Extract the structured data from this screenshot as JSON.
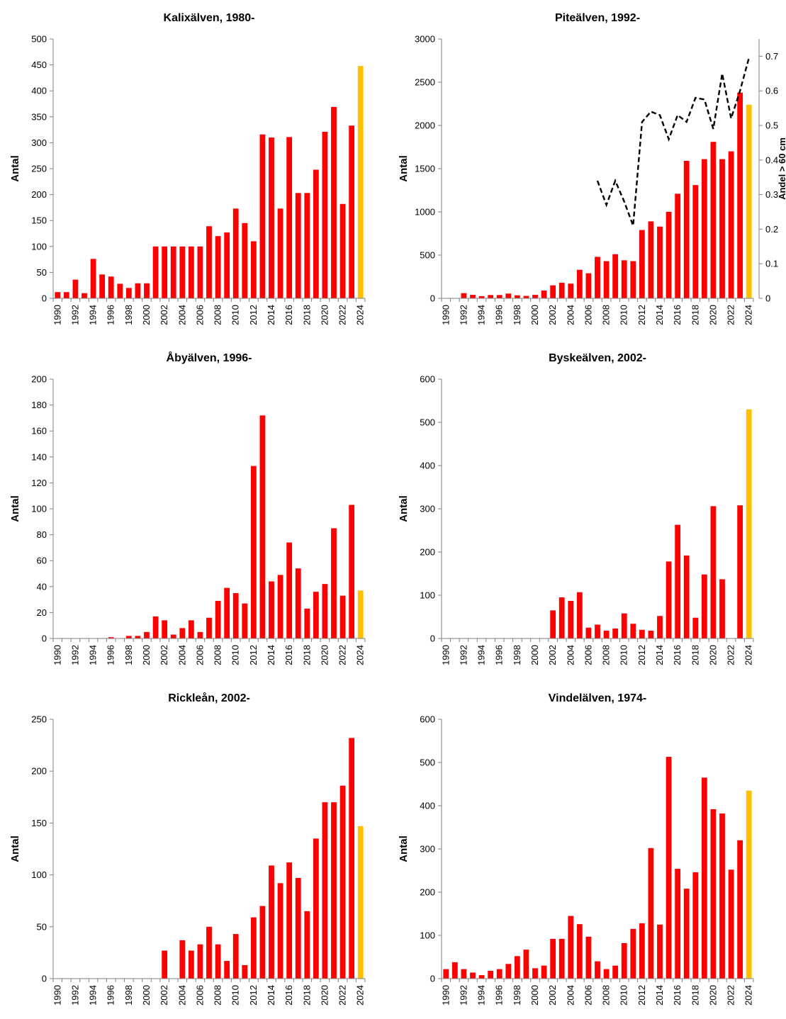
{
  "colors": {
    "bar": "#ff0000",
    "bar_last": "#ffc000",
    "axis": "#808080",
    "line": "#000000"
  },
  "chart_data": [
    {
      "type": "bar",
      "title": "Kalixälven, 1980-",
      "ylabel": "Antal",
      "ylim": [
        0,
        500
      ],
      "yticks": [
        "0",
        "50",
        "100",
        "150",
        "200",
        "250",
        "300",
        "350",
        "400",
        "450",
        "500"
      ],
      "categories": [
        "1990",
        "1991",
        "1992",
        "1993",
        "1994",
        "1995",
        "1996",
        "1997",
        "1998",
        "1999",
        "2000",
        "2001",
        "2002",
        "2003",
        "2004",
        "2005",
        "2006",
        "2007",
        "2008",
        "2009",
        "2010",
        "2011",
        "2012",
        "2013",
        "2014",
        "2015",
        "2016",
        "2017",
        "2018",
        "2019",
        "2020",
        "2021",
        "2022",
        "2023",
        "2024"
      ],
      "xticks": [
        "1990",
        "1992",
        "1994",
        "1996",
        "1998",
        "2000",
        "2002",
        "2004",
        "2006",
        "2008",
        "2010",
        "2012",
        "2014",
        "2016",
        "2018",
        "2020",
        "2022",
        "2024"
      ],
      "values": [
        12,
        12,
        36,
        10,
        76,
        46,
        42,
        28,
        20,
        29,
        29,
        100,
        100,
        100,
        100,
        100,
        100,
        139,
        120,
        127,
        173,
        145,
        110,
        316,
        310,
        173,
        311,
        203,
        203,
        248,
        321,
        369,
        182,
        333,
        448
      ],
      "grid": false
    },
    {
      "type": "bar",
      "title": "Piteälven, 1992-",
      "ylabel": "Antal",
      "y2label": "Andel > 60 cm",
      "ylim": [
        0,
        3000
      ],
      "yticks": [
        "0",
        "500",
        "1000",
        "1500",
        "2000",
        "2500",
        "3000"
      ],
      "y2lim": [
        0,
        0.75
      ],
      "y2ticks": [
        "0",
        "0.1",
        "0.2",
        "0.3",
        "0.4",
        "0.5",
        "0.6",
        "0.7"
      ],
      "categories": [
        "1990",
        "1991",
        "1992",
        "1993",
        "1994",
        "1995",
        "1996",
        "1997",
        "1998",
        "1999",
        "2000",
        "2001",
        "2002",
        "2003",
        "2004",
        "2005",
        "2006",
        "2007",
        "2008",
        "2009",
        "2010",
        "2011",
        "2012",
        "2013",
        "2014",
        "2015",
        "2016",
        "2017",
        "2018",
        "2019",
        "2020",
        "2021",
        "2022",
        "2023",
        "2024"
      ],
      "xticks": [
        "1990",
        "1992",
        "1994",
        "1996",
        "1998",
        "2000",
        "2002",
        "2004",
        "2006",
        "2008",
        "2010",
        "2012",
        "2014",
        "2016",
        "2018",
        "2020",
        "2022",
        "2024"
      ],
      "values": [
        0,
        0,
        60,
        40,
        25,
        38,
        38,
        55,
        35,
        28,
        40,
        90,
        150,
        180,
        170,
        330,
        290,
        480,
        430,
        510,
        440,
        430,
        790,
        890,
        830,
        1000,
        1210,
        1590,
        1310,
        1610,
        1810,
        1610,
        1700,
        2380,
        2240
      ],
      "line_x": [
        2007,
        2008,
        2009,
        2010,
        2011,
        2012,
        2013,
        2014,
        2015,
        2016,
        2017,
        2018,
        2019,
        2020,
        2021,
        2022,
        2023,
        2024
      ],
      "line_values": [
        0.34,
        0.27,
        0.34,
        0.28,
        0.21,
        0.51,
        0.54,
        0.53,
        0.46,
        0.53,
        0.51,
        0.58,
        0.575,
        0.49,
        0.65,
        0.52,
        0.6,
        0.695
      ],
      "grid": false
    },
    {
      "type": "bar",
      "title": "Åbyälven, 1996-",
      "ylabel": "Antal",
      "ylim": [
        0,
        200
      ],
      "yticks": [
        "0",
        "20",
        "40",
        "60",
        "80",
        "100",
        "120",
        "140",
        "160",
        "180",
        "200"
      ],
      "categories": [
        "1990",
        "1991",
        "1992",
        "1993",
        "1994",
        "1995",
        "1996",
        "1997",
        "1998",
        "1999",
        "2000",
        "2001",
        "2002",
        "2003",
        "2004",
        "2005",
        "2006",
        "2007",
        "2008",
        "2009",
        "2010",
        "2011",
        "2012",
        "2013",
        "2014",
        "2015",
        "2016",
        "2017",
        "2018",
        "2019",
        "2020",
        "2021",
        "2022",
        "2023",
        "2024"
      ],
      "xticks": [
        "1990",
        "1992",
        "1994",
        "1996",
        "1998",
        "2000",
        "2002",
        "2004",
        "2006",
        "2008",
        "2010",
        "2012",
        "2014",
        "2016",
        "2018",
        "2020",
        "2022",
        "2024"
      ],
      "values": [
        0,
        0,
        0,
        0,
        0,
        0,
        1,
        0,
        2,
        2,
        5,
        17,
        14,
        3,
        8,
        14,
        5,
        16,
        29,
        39,
        35,
        27,
        133,
        172,
        44,
        49,
        74,
        54,
        23,
        36,
        42,
        85,
        33,
        103,
        37
      ],
      "grid": false
    },
    {
      "type": "bar",
      "title": "Byskeälven, 2002-",
      "ylabel": "Antal",
      "ylim": [
        0,
        600
      ],
      "yticks": [
        "0",
        "100",
        "200",
        "300",
        "400",
        "500",
        "600"
      ],
      "categories": [
        "1990",
        "1991",
        "1992",
        "1993",
        "1994",
        "1995",
        "1996",
        "1997",
        "1998",
        "1999",
        "2000",
        "2001",
        "2002",
        "2003",
        "2004",
        "2005",
        "2006",
        "2007",
        "2008",
        "2009",
        "2010",
        "2011",
        "2012",
        "2013",
        "2014",
        "2015",
        "2016",
        "2017",
        "2018",
        "2019",
        "2020",
        "2021",
        "2022",
        "2023",
        "2024"
      ],
      "xticks": [
        "1990",
        "1992",
        "1994",
        "1996",
        "1998",
        "2000",
        "2002",
        "2004",
        "2006",
        "2008",
        "2010",
        "2012",
        "2014",
        "2016",
        "2018",
        "2020",
        "2022",
        "2024"
      ],
      "values": [
        0,
        0,
        0,
        0,
        0,
        0,
        0,
        0,
        0,
        0,
        0,
        0,
        65,
        95,
        87,
        107,
        25,
        32,
        18,
        23,
        58,
        34,
        20,
        18,
        52,
        178,
        263,
        192,
        48,
        148,
        306,
        137,
        0,
        308,
        530
      ],
      "grid": false
    },
    {
      "type": "bar",
      "title": "Rickleån, 2002-",
      "ylabel": "Antal",
      "ylim": [
        0,
        250
      ],
      "yticks": [
        "0",
        "50",
        "100",
        "150",
        "200",
        "250"
      ],
      "categories": [
        "1990",
        "1991",
        "1992",
        "1993",
        "1994",
        "1995",
        "1996",
        "1997",
        "1998",
        "1999",
        "2000",
        "2001",
        "2002",
        "2003",
        "2004",
        "2005",
        "2006",
        "2007",
        "2008",
        "2009",
        "2010",
        "2011",
        "2012",
        "2013",
        "2014",
        "2015",
        "2016",
        "2017",
        "2018",
        "2019",
        "2020",
        "2021",
        "2022",
        "2023",
        "2024"
      ],
      "xticks": [
        "1990",
        "1992",
        "1994",
        "1996",
        "1998",
        "2000",
        "2002",
        "2004",
        "2006",
        "2008",
        "2010",
        "2012",
        "2014",
        "2016",
        "2018",
        "2020",
        "2022",
        "2024"
      ],
      "values": [
        0,
        0,
        0,
        0,
        0,
        0,
        0,
        0,
        0,
        0,
        0,
        0,
        27,
        0,
        37,
        27,
        33,
        50,
        33,
        17,
        43,
        13,
        59,
        70,
        109,
        92,
        112,
        97,
        65,
        135,
        170,
        170,
        186,
        232,
        147
      ],
      "grid": false
    },
    {
      "type": "bar",
      "title": "Vindelälven, 1974-",
      "ylabel": "Antal",
      "ylim": [
        0,
        600
      ],
      "yticks": [
        "0",
        "100",
        "200",
        "300",
        "400",
        "500",
        "600"
      ],
      "categories": [
        "1990",
        "1991",
        "1992",
        "1993",
        "1994",
        "1995",
        "1996",
        "1997",
        "1998",
        "1999",
        "2000",
        "2001",
        "2002",
        "2003",
        "2004",
        "2005",
        "2006",
        "2007",
        "2008",
        "2009",
        "2010",
        "2011",
        "2012",
        "2013",
        "2014",
        "2015",
        "2016",
        "2017",
        "2018",
        "2019",
        "2020",
        "2021",
        "2022",
        "2023",
        "2024"
      ],
      "xticks": [
        "1990",
        "1992",
        "1994",
        "1996",
        "1998",
        "2000",
        "2002",
        "2004",
        "2006",
        "2008",
        "2010",
        "2012",
        "2014",
        "2016",
        "2018",
        "2020",
        "2022",
        "2024"
      ],
      "values": [
        22,
        38,
        22,
        14,
        8,
        18,
        22,
        34,
        52,
        67,
        24,
        30,
        92,
        92,
        145,
        126,
        97,
        40,
        22,
        30,
        82,
        115,
        128,
        302,
        125,
        513,
        254,
        208,
        246,
        465,
        392,
        382,
        252,
        320,
        435
      ],
      "grid": false
    }
  ]
}
